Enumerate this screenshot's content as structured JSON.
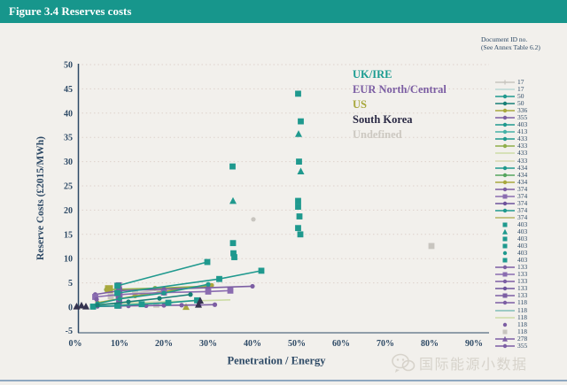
{
  "header": {
    "title": "Figure 3.4 Reserves costs"
  },
  "legend": {
    "header_line1": "Document ID no.",
    "header_line2": "(See Annex Table 6.2)",
    "entries": [
      {
        "id": "17",
        "color": "#c8c5bf",
        "marker": "plus",
        "line": true
      },
      {
        "id": "17",
        "color": "#b9d8d3",
        "marker": "none",
        "line": true
      },
      {
        "id": "50",
        "color": "#1f998e",
        "marker": "dot",
        "line": true
      },
      {
        "id": "50",
        "color": "#187f76",
        "marker": "dot",
        "line": true
      },
      {
        "id": "336",
        "color": "#a8a83d",
        "marker": "dot",
        "line": true
      },
      {
        "id": "355",
        "color": "#7c5ea3",
        "marker": "dot",
        "line": true
      },
      {
        "id": "403",
        "color": "#1f998e",
        "marker": "dot",
        "line": true
      },
      {
        "id": "413",
        "color": "#45b1a7",
        "marker": "dot",
        "line": true
      },
      {
        "id": "433",
        "color": "#1f998e",
        "marker": "dot",
        "line": true
      },
      {
        "id": "433",
        "color": "#8fae4a",
        "marker": "dot",
        "line": true
      },
      {
        "id": "433",
        "color": "#ccdca6",
        "marker": "none",
        "line": true
      },
      {
        "id": "433",
        "color": "#d8d8b0",
        "marker": "none",
        "line": true
      },
      {
        "id": "434",
        "color": "#1f998e",
        "marker": "dot",
        "line": true
      },
      {
        "id": "434",
        "color": "#55a55e",
        "marker": "dot",
        "line": true
      },
      {
        "id": "434",
        "color": "#a8a83d",
        "marker": "dot",
        "line": true
      },
      {
        "id": "374",
        "color": "#7c5ea3",
        "marker": "dot",
        "line": true
      },
      {
        "id": "374",
        "color": "#8a6cb0",
        "marker": "square",
        "line": true
      },
      {
        "id": "374",
        "color": "#6d529c",
        "marker": "dot",
        "line": true
      },
      {
        "id": "374",
        "color": "#1f998e",
        "marker": "dot",
        "line": true
      },
      {
        "id": "374",
        "color": "#b5b563",
        "marker": "none",
        "line": true
      },
      {
        "id": "403",
        "color": "#1f998e",
        "marker": "square",
        "line": false
      },
      {
        "id": "403",
        "color": "#1f998e",
        "marker": "triangle",
        "line": false
      },
      {
        "id": "403",
        "color": "#1f998e",
        "marker": "square",
        "line": false
      },
      {
        "id": "403",
        "color": "#1f998e",
        "marker": "square",
        "line": false
      },
      {
        "id": "403",
        "color": "#1f998e",
        "marker": "dot",
        "line": false
      },
      {
        "id": "403",
        "color": "#1f998e",
        "marker": "square",
        "line": false
      },
      {
        "id": "133",
        "color": "#7c5ea3",
        "marker": "dot",
        "line": true
      },
      {
        "id": "133",
        "color": "#8a6cb0",
        "marker": "square",
        "line": true
      },
      {
        "id": "133",
        "color": "#7c5ea3",
        "marker": "dot",
        "line": true
      },
      {
        "id": "133",
        "color": "#6d529c",
        "marker": "dot",
        "line": true
      },
      {
        "id": "133",
        "color": "#7c5ea3",
        "marker": "square",
        "line": true
      },
      {
        "id": "118",
        "color": "#7c5ea3",
        "marker": "dot",
        "line": true
      },
      {
        "id": "118",
        "color": "#7fbdb7",
        "marker": "none",
        "line": true
      },
      {
        "id": "118",
        "color": "#ccdca6",
        "marker": "none",
        "line": true
      },
      {
        "id": "118",
        "color": "#7c5ea3",
        "marker": "dot",
        "line": false
      },
      {
        "id": "118",
        "color": "#c8c5bf",
        "marker": "square",
        "line": false
      },
      {
        "id": "278",
        "color": "#7c5ea3",
        "marker": "triangle",
        "line": true
      },
      {
        "id": "355",
        "color": "#7c5ea3",
        "marker": "dot",
        "line": true
      }
    ]
  },
  "watermark": {
    "text": "国际能源小数据",
    "icon": "wechat-icon"
  },
  "chart_data": {
    "type": "scatter",
    "title": "Figure 3.4 Reserves costs",
    "xlabel": "Penetration / Energy",
    "ylabel": "Reserve Costs (£2015/MWh)",
    "x_unit": "percent",
    "xlim": [
      0,
      90
    ],
    "ylim": [
      -5,
      50
    ],
    "x_tick_values": [
      0,
      10,
      20,
      30,
      40,
      50,
      60,
      70,
      80,
      90
    ],
    "x_tick_labels": [
      "0%",
      "10%",
      "20%",
      "30%",
      "40%",
      "50%",
      "60%",
      "70%",
      "80%",
      "90%"
    ],
    "y_ticks": [
      -5,
      0,
      5,
      10,
      15,
      20,
      25,
      30,
      35,
      40,
      45,
      50
    ],
    "grid": {
      "horizontal": true,
      "style": "dashed"
    },
    "legend_position": "right",
    "region_labels": [
      {
        "label": "UK/IRE",
        "color": "#1a9c91"
      },
      {
        "label": "EUR North/Central",
        "color": "#7c5ea3"
      },
      {
        "label": "US",
        "color": "#a8a83d"
      },
      {
        "label": "South Korea",
        "color": "#2b2a45"
      },
      {
        "label": "Undefined",
        "color": "#ccc8c1"
      }
    ],
    "series": [
      {
        "region": "Undefined",
        "doc_id": "17",
        "color": "#b9d8d3",
        "marker": "none",
        "line": true,
        "points": [
          [
            5,
            0.5
          ],
          [
            14,
            0.7
          ],
          [
            22,
            0.9
          ]
        ]
      },
      {
        "region": "Undefined",
        "doc_id": "433",
        "color": "#ccdca6",
        "marker": "none",
        "line": true,
        "points": [
          [
            5,
            0.6
          ],
          [
            20,
            1.1
          ],
          [
            35,
            1.5
          ]
        ]
      },
      {
        "region": "Undefined",
        "doc_id": "17",
        "color": "#c8c5bf",
        "marker": "square",
        "line": true,
        "points": [
          [
            8,
            2.2
          ],
          [
            13.5,
            2.9
          ],
          [
            19,
            3.6
          ]
        ]
      },
      {
        "region": "Undefined",
        "doc_id": "118",
        "color": "#c8c5bf",
        "marker": "dot",
        "line": false,
        "points": [
          [
            40.2,
            18.1
          ]
        ]
      },
      {
        "region": "Undefined",
        "doc_id": "118",
        "color": "#c8c5bf",
        "marker": "square",
        "line": false,
        "points": [
          [
            80.4,
            12.6
          ],
          [
            18.3,
            0.5
          ]
        ]
      },
      {
        "region": "US",
        "doc_id": "336",
        "color": "#a8a83d",
        "marker": "dot",
        "line": true,
        "points": [
          [
            5,
            0.9
          ],
          [
            13.5,
            2.3
          ],
          [
            22,
            3.5
          ],
          [
            30.8,
            4.5
          ]
        ]
      },
      {
        "region": "US",
        "doc_id": "433",
        "color": "#8fae4a",
        "marker": "dot",
        "line": true,
        "points": [
          [
            7,
            3.6
          ],
          [
            18,
            3.9
          ],
          [
            29.5,
            4.3
          ]
        ]
      },
      {
        "region": "US",
        "doc_id": "434",
        "color": "#a8a83d",
        "marker": "big-square",
        "line": false,
        "points": [
          [
            7.6,
            3.7
          ]
        ]
      },
      {
        "region": "US",
        "doc_id": "434",
        "color": "#a8a83d",
        "marker": "triangle",
        "line": false,
        "points": [
          [
            25,
            0.05
          ]
        ]
      },
      {
        "region": "EUR North/Central",
        "doc_id": "374",
        "color": "#7c5ea3",
        "marker": "dot",
        "line": true,
        "points": [
          [
            4.5,
            2.6
          ],
          [
            10,
            3.4
          ],
          [
            20,
            3.7
          ],
          [
            30,
            4.0
          ],
          [
            40,
            4.3
          ]
        ]
      },
      {
        "region": "EUR North/Central",
        "doc_id": "374",
        "color": "#8a6cb0",
        "marker": "square",
        "line": true,
        "points": [
          [
            4.5,
            2.1
          ],
          [
            10,
            2.6
          ],
          [
            20,
            3.0
          ],
          [
            30,
            3.2
          ],
          [
            35,
            3.4
          ]
        ]
      },
      {
        "region": "EUR North/Central",
        "doc_id": "133",
        "color": "#7c5ea3",
        "marker": "dot",
        "line": true,
        "points": [
          [
            5,
            0.15
          ],
          [
            12,
            0.25
          ],
          [
            16,
            0.3
          ],
          [
            20,
            0.35
          ],
          [
            24,
            0.4
          ],
          [
            28,
            0.45
          ],
          [
            31.5,
            0.5
          ]
        ]
      },
      {
        "region": "EUR North/Central",
        "doc_id": "355",
        "color": "#7c5ea3",
        "marker": "square",
        "line": false,
        "points": [
          [
            9.8,
            4.5
          ],
          [
            9.9,
            3.5
          ],
          [
            9.8,
            2.4
          ],
          [
            9.9,
            1.3
          ],
          [
            9.8,
            0.3
          ]
        ]
      },
      {
        "region": "EUR North/Central",
        "doc_id": "118",
        "color": "#7c5ea3",
        "marker": "dot",
        "line": false,
        "points": [
          [
            4.8,
            1.6
          ]
        ]
      },
      {
        "region": "UK/IRE",
        "doc_id": "50",
        "color": "#1f998e",
        "marker": "square",
        "line": true,
        "points": [
          [
            4,
            0.1
          ],
          [
            9.5,
            0.3
          ],
          [
            15,
            0.6
          ],
          [
            21,
            0.9
          ],
          [
            27.5,
            1.4
          ]
        ]
      },
      {
        "region": "UK/IRE",
        "doc_id": "434",
        "color": "#1f998e",
        "marker": "dot",
        "line": true,
        "points": [
          [
            5,
            0.7
          ],
          [
            10,
            1.7
          ],
          [
            20,
            2.9
          ],
          [
            30,
            4.7
          ]
        ]
      },
      {
        "region": "UK/IRE",
        "doc_id": "433",
        "color": "#187f76",
        "marker": "dot",
        "line": true,
        "points": [
          [
            5,
            0.4
          ],
          [
            12,
            1.1
          ],
          [
            19,
            1.8
          ],
          [
            26,
            2.6
          ]
        ]
      },
      {
        "region": "UK/IRE",
        "doc_id": "413",
        "color": "#1f998e",
        "marker": "square",
        "line": true,
        "points": [
          [
            9.5,
            2.9
          ],
          [
            32.5,
            5.8
          ],
          [
            42,
            7.5
          ]
        ]
      },
      {
        "region": "UK/IRE",
        "doc_id": "403",
        "color": "#1f998e",
        "marker": "square",
        "line": true,
        "points": [
          [
            9.5,
            4.4
          ],
          [
            29.8,
            9.3
          ]
        ]
      },
      {
        "region": "UK/IRE",
        "doc_id": "403",
        "color": "#1f998e",
        "marker": "square",
        "line": false,
        "points": [
          [
            35.5,
            29.0
          ],
          [
            35.6,
            13.2
          ],
          [
            35.7,
            11.1
          ],
          [
            35.9,
            10.3
          ],
          [
            50.3,
            44.0
          ],
          [
            50.9,
            38.3
          ],
          [
            50.5,
            30.0
          ],
          [
            50.3,
            21.9
          ],
          [
            50.3,
            20.7
          ],
          [
            50.6,
            18.7
          ],
          [
            50.3,
            16.3
          ],
          [
            50.8,
            15.0
          ]
        ]
      },
      {
        "region": "UK/IRE",
        "doc_id": "403",
        "color": "#1f998e",
        "marker": "triangle",
        "line": false,
        "points": [
          [
            35.6,
            21.9
          ],
          [
            50.4,
            35.7
          ],
          [
            50.9,
            28.0
          ]
        ]
      },
      {
        "region": "South Korea",
        "doc_id": "278",
        "color": "#34324e",
        "marker": "triangle",
        "line": false,
        "points": [
          [
            0.3,
            0.15
          ],
          [
            1.4,
            0.35
          ],
          [
            2.4,
            0.15
          ],
          [
            27.8,
            0.5
          ],
          [
            28.2,
            1.35
          ]
        ]
      }
    ]
  }
}
